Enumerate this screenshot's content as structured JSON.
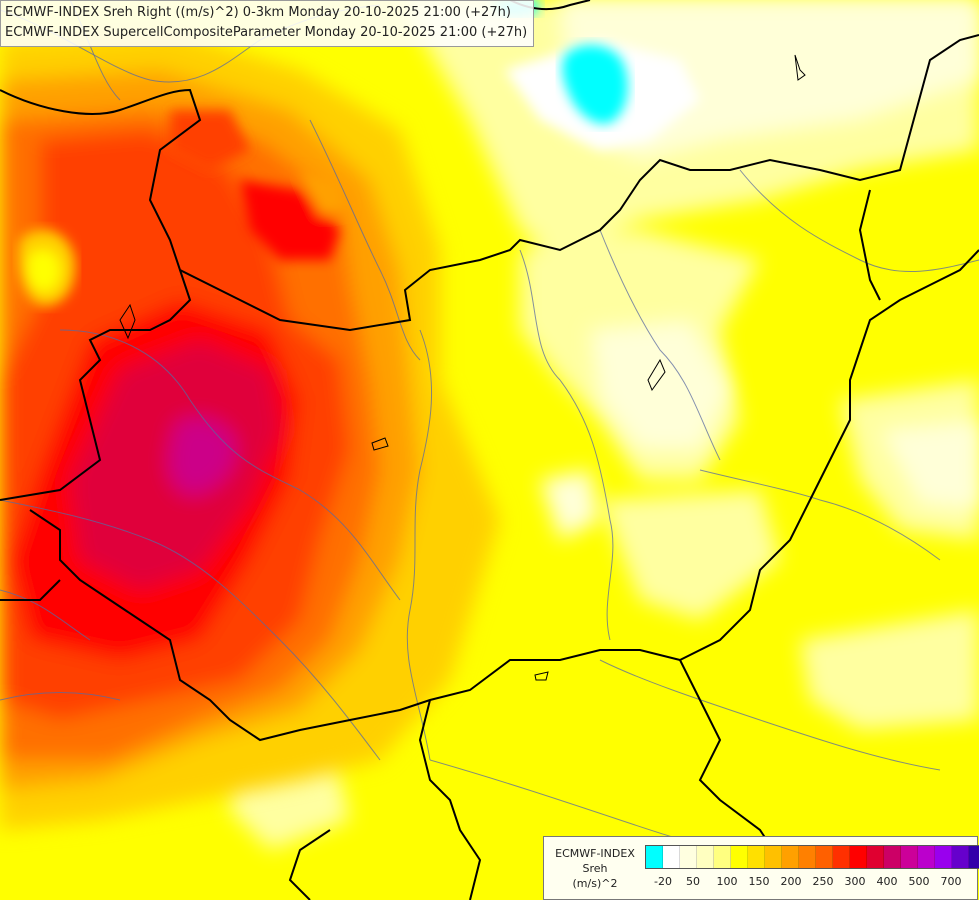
{
  "header": {
    "line1": "ECMWF-INDEX Sreh Right ((m/s)^2) 0-3km Monday 20-10-2025 21:00 (+27h)",
    "line2": "ECMWF-INDEX SupercellCompositeParameter Monday 20-10-2025 21:00 (+27h)"
  },
  "legend": {
    "source": "ECMWF-INDEX",
    "variable": "Sreh",
    "unit": "(m/s)^2",
    "colors": [
      "#00ffff",
      "#ffffff",
      "#ffffe0",
      "#ffffc0",
      "#ffff80",
      "#ffff00",
      "#ffe000",
      "#ffc000",
      "#ffa000",
      "#ff8000",
      "#ff6000",
      "#ff3000",
      "#ff0000",
      "#e00030",
      "#cc0066",
      "#cc0099",
      "#bb00cc",
      "#9900ee",
      "#6600cc",
      "#3300aa",
      "#000080"
    ],
    "ticks": [
      "-20",
      "50",
      "100",
      "150",
      "200",
      "250",
      "300",
      "400",
      "500",
      "700"
    ]
  },
  "map_colors": {
    "background": "#ffff00",
    "pale": "#ffffa0",
    "very_pale": "#ffffd8",
    "white": "#ffffff",
    "cyan": "#00ffff",
    "light_orange": "#ffd000",
    "orange": "#ffa000",
    "dark_orange": "#ff7000",
    "red_orange": "#ff4000",
    "red": "#ff0000",
    "crimson": "#e0003a",
    "magenta": "#cc0088",
    "border": "#000000",
    "river": "#5a6aa0"
  }
}
